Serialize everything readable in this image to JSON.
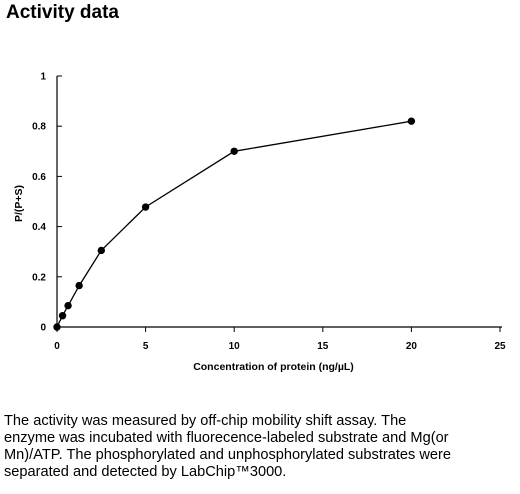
{
  "header": {
    "title": "Activity data"
  },
  "chart_data": {
    "type": "line",
    "title": "",
    "xlabel": "Concentration of protein (ng/µL)",
    "ylabel": "P/(P+S)",
    "xlim": [
      0,
      25
    ],
    "ylim": [
      0,
      1
    ],
    "x_ticks": [
      0,
      5,
      10,
      15,
      20,
      25
    ],
    "x_tick_labels": [
      "0",
      "5",
      "10",
      "15",
      "20",
      "25"
    ],
    "y_ticks": [
      0,
      0.2,
      0.4,
      0.6,
      0.8,
      1
    ],
    "y_tick_labels": [
      "0",
      "0.2",
      "0.4",
      "0.6",
      "0.8",
      "1"
    ],
    "grid": false,
    "legend": "none",
    "line_color": "#000000",
    "series": [
      {
        "x": [
          0,
          0.313,
          0.625,
          1.25,
          2.5,
          5,
          10,
          20
        ],
        "y": [
          0.0,
          0.045,
          0.085,
          0.165,
          0.305,
          0.478,
          0.7,
          0.82
        ]
      }
    ]
  },
  "caption": {
    "line1": "The activity was measured by off-chip mobility shift assay. The",
    "line2": "enzyme was incubated with fluorecence-labeled  substrate and Mg(or",
    "line3": "Mn)/ATP. The phosphorylated and unphosphorylated substrates were",
    "line4": "separated and detected by LabChip™3000."
  }
}
